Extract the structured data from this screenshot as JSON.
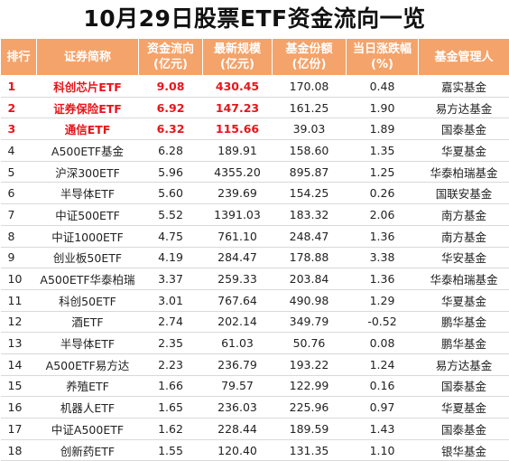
{
  "title": "10月29日股票ETF资金流向一览",
  "headers": [
    {
      "line1": "排行",
      "line2": ""
    },
    {
      "line1": "证券简称",
      "line2": ""
    },
    {
      "line1": "资金流向",
      "line2": "(亿元)"
    },
    {
      "line1": "最新规模",
      "line2": "(亿元)"
    },
    {
      "line1": "基金份额",
      "line2": "(亿份)"
    },
    {
      "line1": "当日涨跌幅",
      "line2": "(%)"
    },
    {
      "line1": "基金管理人",
      "line2": ""
    }
  ],
  "rows": [
    {
      "rank": "1",
      "name": "科创芯片ETF",
      "flow": "9.08",
      "scale": "430.45",
      "shares": "170.08",
      "change": "0.48",
      "manager": "嘉实基金"
    },
    {
      "rank": "2",
      "name": "证券保险ETF",
      "flow": "6.92",
      "scale": "147.23",
      "shares": "161.25",
      "change": "1.90",
      "manager": "易方达基金"
    },
    {
      "rank": "3",
      "name": "通信ETF",
      "flow": "6.32",
      "scale": "115.66",
      "shares": "39.03",
      "change": "1.89",
      "manager": "国泰基金"
    },
    {
      "rank": "4",
      "name": "A500ETF基金",
      "flow": "6.28",
      "scale": "189.91",
      "shares": "158.60",
      "change": "1.35",
      "manager": "华夏基金"
    },
    {
      "rank": "5",
      "name": "沪深300ETF",
      "flow": "5.96",
      "scale": "4355.20",
      "shares": "895.87",
      "change": "1.25",
      "manager": "华泰柏瑞基金"
    },
    {
      "rank": "6",
      "name": "半导体ETF",
      "flow": "5.60",
      "scale": "239.69",
      "shares": "154.25",
      "change": "0.26",
      "manager": "国联安基金"
    },
    {
      "rank": "7",
      "name": "中证500ETF",
      "flow": "5.52",
      "scale": "1391.03",
      "shares": "183.32",
      "change": "2.06",
      "manager": "南方基金"
    },
    {
      "rank": "8",
      "name": "中证1000ETF",
      "flow": "4.75",
      "scale": "761.10",
      "shares": "248.47",
      "change": "1.36",
      "manager": "南方基金"
    },
    {
      "rank": "9",
      "name": "创业板50ETF",
      "flow": "4.19",
      "scale": "284.47",
      "shares": "178.88",
      "change": "3.38",
      "manager": "华安基金"
    },
    {
      "rank": "10",
      "name": "A500ETF华泰柏瑞",
      "flow": "3.37",
      "scale": "259.33",
      "shares": "203.84",
      "change": "1.36",
      "manager": "华泰柏瑞基金"
    },
    {
      "rank": "11",
      "name": "科创50ETF",
      "flow": "3.01",
      "scale": "767.64",
      "shares": "490.98",
      "change": "1.29",
      "manager": "华夏基金"
    },
    {
      "rank": "12",
      "name": "酒ETF",
      "flow": "2.74",
      "scale": "202.14",
      "shares": "349.79",
      "change": "-0.52",
      "manager": "鹏华基金"
    },
    {
      "rank": "13",
      "name": "半导体ETF",
      "flow": "2.35",
      "scale": "61.03",
      "shares": "50.76",
      "change": "0.08",
      "manager": "鹏华基金"
    },
    {
      "rank": "14",
      "name": "A500ETF易方达",
      "flow": "2.23",
      "scale": "236.79",
      "shares": "193.22",
      "change": "1.24",
      "manager": "易方达基金"
    },
    {
      "rank": "15",
      "name": "养殖ETF",
      "flow": "1.66",
      "scale": "79.57",
      "shares": "122.99",
      "change": "0.16",
      "manager": "国泰基金"
    },
    {
      "rank": "16",
      "name": "机器人ETF",
      "flow": "1.65",
      "scale": "236.03",
      "shares": "225.96",
      "change": "0.97",
      "manager": "华夏基金"
    },
    {
      "rank": "17",
      "name": "中证A500ETF",
      "flow": "1.62",
      "scale": "228.44",
      "shares": "189.59",
      "change": "1.43",
      "manager": "国泰基金"
    },
    {
      "rank": "18",
      "name": "创新药ETF",
      "flow": "1.55",
      "scale": "120.40",
      "shares": "131.35",
      "change": "1.10",
      "manager": "银华基金"
    }
  ],
  "highlight_color": "#e8141c",
  "header_bg": "#f4a36a"
}
